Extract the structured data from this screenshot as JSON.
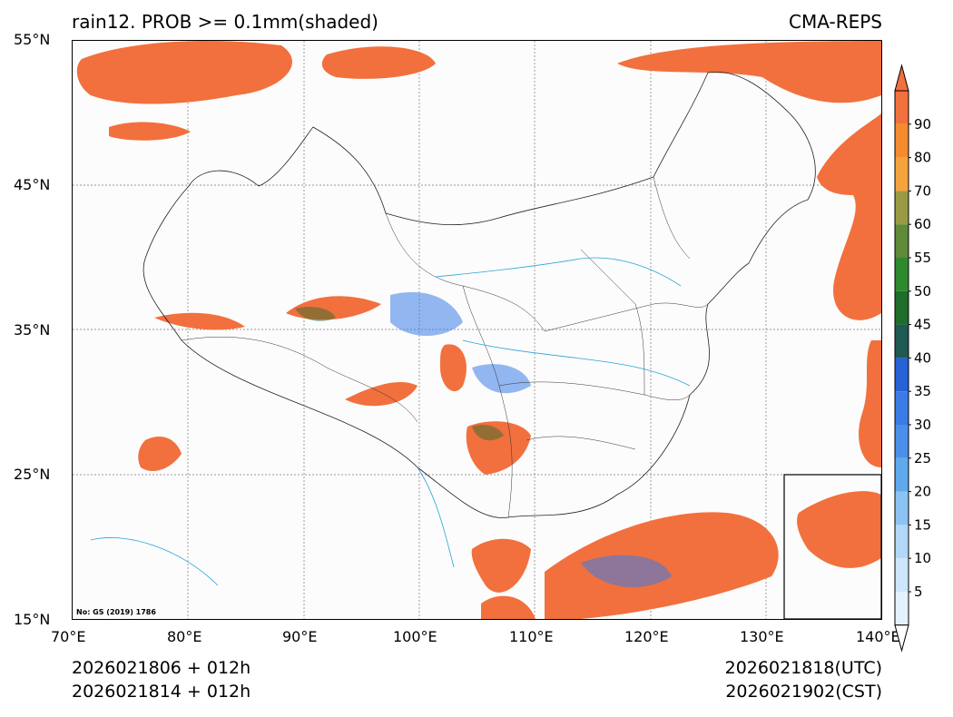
{
  "header": {
    "title_left": "rain12. PROB >= 0.1mm(shaded)",
    "title_right": "CMA-REPS"
  },
  "map": {
    "lon_range": [
      70,
      140
    ],
    "lat_range": [
      15,
      55
    ],
    "lat_labels": [
      "55°N",
      "45°N",
      "35°N",
      "25°N",
      "15°N"
    ],
    "lon_labels": [
      "70°E",
      "80°E",
      "90°E",
      "100°E",
      "110°E",
      "120°E",
      "130°E",
      "140°E"
    ],
    "grid": true,
    "approval_note": "No: GS (2019) 1786"
  },
  "colorbar": {
    "levels": [
      "5",
      "10",
      "15",
      "20",
      "25",
      "30",
      "35",
      "40",
      "45",
      "50",
      "55",
      "60",
      "70",
      "80",
      "90"
    ],
    "colors": [
      "#e3f2fd",
      "#cde6fb",
      "#b3d8f7",
      "#8dc3f3",
      "#5fa9ec",
      "#4a90ea",
      "#3b7be6",
      "#2563d6",
      "#1f5a52",
      "#1e6d2a",
      "#2f8a2e",
      "#5f8a3a",
      "#9a9a45",
      "#f5a33c",
      "#f58a2f",
      "#f2703d"
    ],
    "under_color": "#ffffff",
    "over_color": "#f2703d"
  },
  "footer": {
    "init_utc": "2026021806  +  012h",
    "init_cst": "2026021814  +  012h",
    "valid_utc": "2026021818(UTC)",
    "valid_cst": "2026021902(CST)"
  }
}
